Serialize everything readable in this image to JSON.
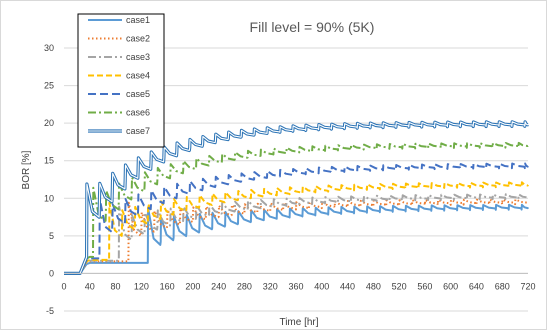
{
  "chart_data": {
    "type": "line",
    "title": "Fill level = 90% (5K)",
    "xlabel": "Time [hr]",
    "ylabel": "BOR [%]",
    "xlim": [
      0,
      720
    ],
    "ylim": [
      -5,
      30
    ],
    "x_ticks": [
      0,
      40,
      80,
      120,
      160,
      200,
      240,
      280,
      320,
      360,
      400,
      440,
      480,
      520,
      560,
      600,
      640,
      680,
      720
    ],
    "y_ticks": [
      -5,
      0,
      5,
      10,
      15,
      20,
      25,
      30
    ],
    "grid": "horizontal",
    "legend_position": "top-left",
    "series": [
      {
        "name": "case1",
        "color": "#5B9BD5",
        "dash": "solid",
        "period": 20,
        "start": 130,
        "init": 1.4,
        "base": 3.8,
        "amp": 3.0,
        "final": 8.8,
        "tau": 150
      },
      {
        "name": "case2",
        "color": "#ED7D31",
        "dash": "dotted",
        "period": 20,
        "start": 100,
        "init": 1.6,
        "base": 5.0,
        "amp": 2.5,
        "final": 9.5,
        "tau": 150
      },
      {
        "name": "case3",
        "color": "#A5A5A5",
        "dash": "dashdot",
        "period": 20,
        "start": 85,
        "init": 1.7,
        "base": 4.5,
        "amp": 2.5,
        "final": 10.2,
        "tau": 150
      },
      {
        "name": "case4",
        "color": "#FFC000",
        "dash": "dashed",
        "period": 20,
        "start": 70,
        "init": 1.8,
        "base": 5.0,
        "amp": 2.5,
        "final": 11.8,
        "tau": 150
      },
      {
        "name": "case5",
        "color": "#4472C4",
        "dash": "longdash",
        "period": 20,
        "start": 55,
        "init": 2.0,
        "base": 5.5,
        "amp": 2.5,
        "final": 14.3,
        "tau": 140
      },
      {
        "name": "case6",
        "color": "#70AD47",
        "dash": "dashdot",
        "period": 20,
        "start": 45,
        "init": 2.2,
        "base": 7.0,
        "amp": 2.5,
        "final": 17.0,
        "tau": 120
      },
      {
        "name": "case7",
        "color": "#2E75B6",
        "dash": "double",
        "period": 20,
        "start": 35,
        "init": 2.4,
        "base": 7.5,
        "amp": 2.5,
        "final": 19.8,
        "tau": 110
      }
    ]
  }
}
